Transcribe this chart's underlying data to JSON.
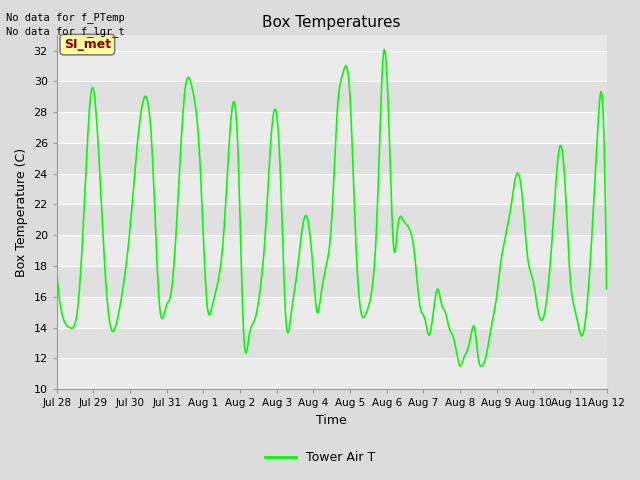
{
  "title": "Box Temperatures",
  "xlabel": "Time",
  "ylabel": "Box Temperature (C)",
  "ylim": [
    10,
    33
  ],
  "yticks": [
    10,
    12,
    14,
    16,
    18,
    20,
    22,
    24,
    26,
    28,
    30,
    32
  ],
  "annotation_lines": [
    "No data for f_PTemp",
    "No data for f_lgr_t"
  ],
  "legend_label": "Tower Air T",
  "legend_color": "#00FF00",
  "line_color": "#00FF00",
  "background_color": "#DCDCDC",
  "plot_bg_color": "#E8E8E8",
  "box_label": "SI_met",
  "box_label_color": "#8B0000",
  "box_bg_color": "#FFFF99",
  "xtick_labels": [
    "Jul 28",
    "Jul 29",
    "Jul 30",
    "Jul 31",
    "Aug 1",
    "Aug 2",
    "Aug 3",
    "Aug 4",
    "Aug 5",
    "Aug 6",
    "Aug 7",
    "Aug 8",
    "Aug 9",
    "Aug 10",
    "Aug 11",
    "Aug 12"
  ],
  "num_days": 15,
  "grid_band_colors": [
    "#F0F0F0",
    "#E0E0E0"
  ]
}
